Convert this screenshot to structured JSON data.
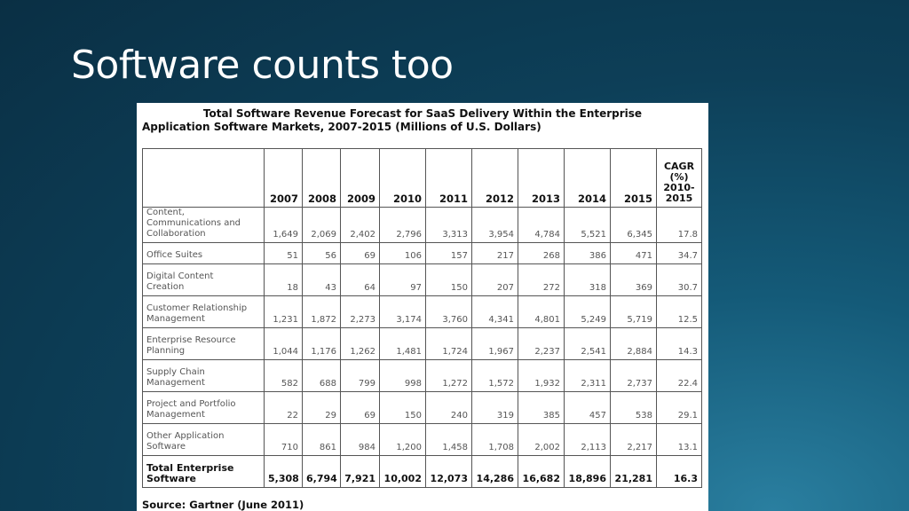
{
  "slide": {
    "title": "Software counts too"
  },
  "table": {
    "title_line1": "Total Software Revenue Forecast for SaaS Delivery Within the Enterprise",
    "title_line2": "Application Software Markets, 2007-2015 (Millions of U.S. Dollars)",
    "columns": [
      "2007",
      "2008",
      "2009",
      "2010",
      "2011",
      "2012",
      "2013",
      "2014",
      "2015"
    ],
    "cagr_header": [
      "CAGR",
      "(%)",
      "2010-",
      "2015"
    ],
    "rows": [
      {
        "label": [
          "Content,",
          "Communications and",
          "Collaboration"
        ],
        "values": [
          "1,649",
          "2,069",
          "2,402",
          "2,796",
          "3,313",
          "3,954",
          "4,784",
          "5,521",
          "6,345"
        ],
        "cagr": "17.8"
      },
      {
        "label": [
          "Office Suites"
        ],
        "values": [
          "51",
          "56",
          "69",
          "106",
          "157",
          "217",
          "268",
          "386",
          "471"
        ],
        "cagr": "34.7"
      },
      {
        "label": [
          "Digital Content",
          "Creation"
        ],
        "values": [
          "18",
          "43",
          "64",
          "97",
          "150",
          "207",
          "272",
          "318",
          "369"
        ],
        "cagr": "30.7"
      },
      {
        "label": [
          "Customer Relationship",
          "Management"
        ],
        "values": [
          "1,231",
          "1,872",
          "2,273",
          "3,174",
          "3,760",
          "4,341",
          "4,801",
          "5,249",
          "5,719"
        ],
        "cagr": "12.5"
      },
      {
        "label": [
          "Enterprise Resource",
          "Planning"
        ],
        "values": [
          "1,044",
          "1,176",
          "1,262",
          "1,481",
          "1,724",
          "1,967",
          "2,237",
          "2,541",
          "2,884"
        ],
        "cagr": "14.3"
      },
      {
        "label": [
          "Supply Chain",
          "Management"
        ],
        "values": [
          "582",
          "688",
          "799",
          "998",
          "1,272",
          "1,572",
          "1,932",
          "2,311",
          "2,737"
        ],
        "cagr": "22.4"
      },
      {
        "label": [
          "Project and Portfolio",
          "Management"
        ],
        "values": [
          "22",
          "29",
          "69",
          "150",
          "240",
          "319",
          "385",
          "457",
          "538"
        ],
        "cagr": "29.1"
      },
      {
        "label": [
          "Other Application",
          "Software"
        ],
        "values": [
          "710",
          "861",
          "984",
          "1,200",
          "1,458",
          "1,708",
          "2,002",
          "2,113",
          "2,217"
        ],
        "cagr": "13.1"
      }
    ],
    "total": {
      "label": [
        "Total Enterprise",
        "Software"
      ],
      "values": [
        "5,308",
        "6,794",
        "7,921",
        "10,002",
        "12,073",
        "14,286",
        "16,682",
        "18,896",
        "21,281"
      ],
      "cagr": "16.3"
    },
    "source": "Source: Gartner (June 2011)"
  }
}
